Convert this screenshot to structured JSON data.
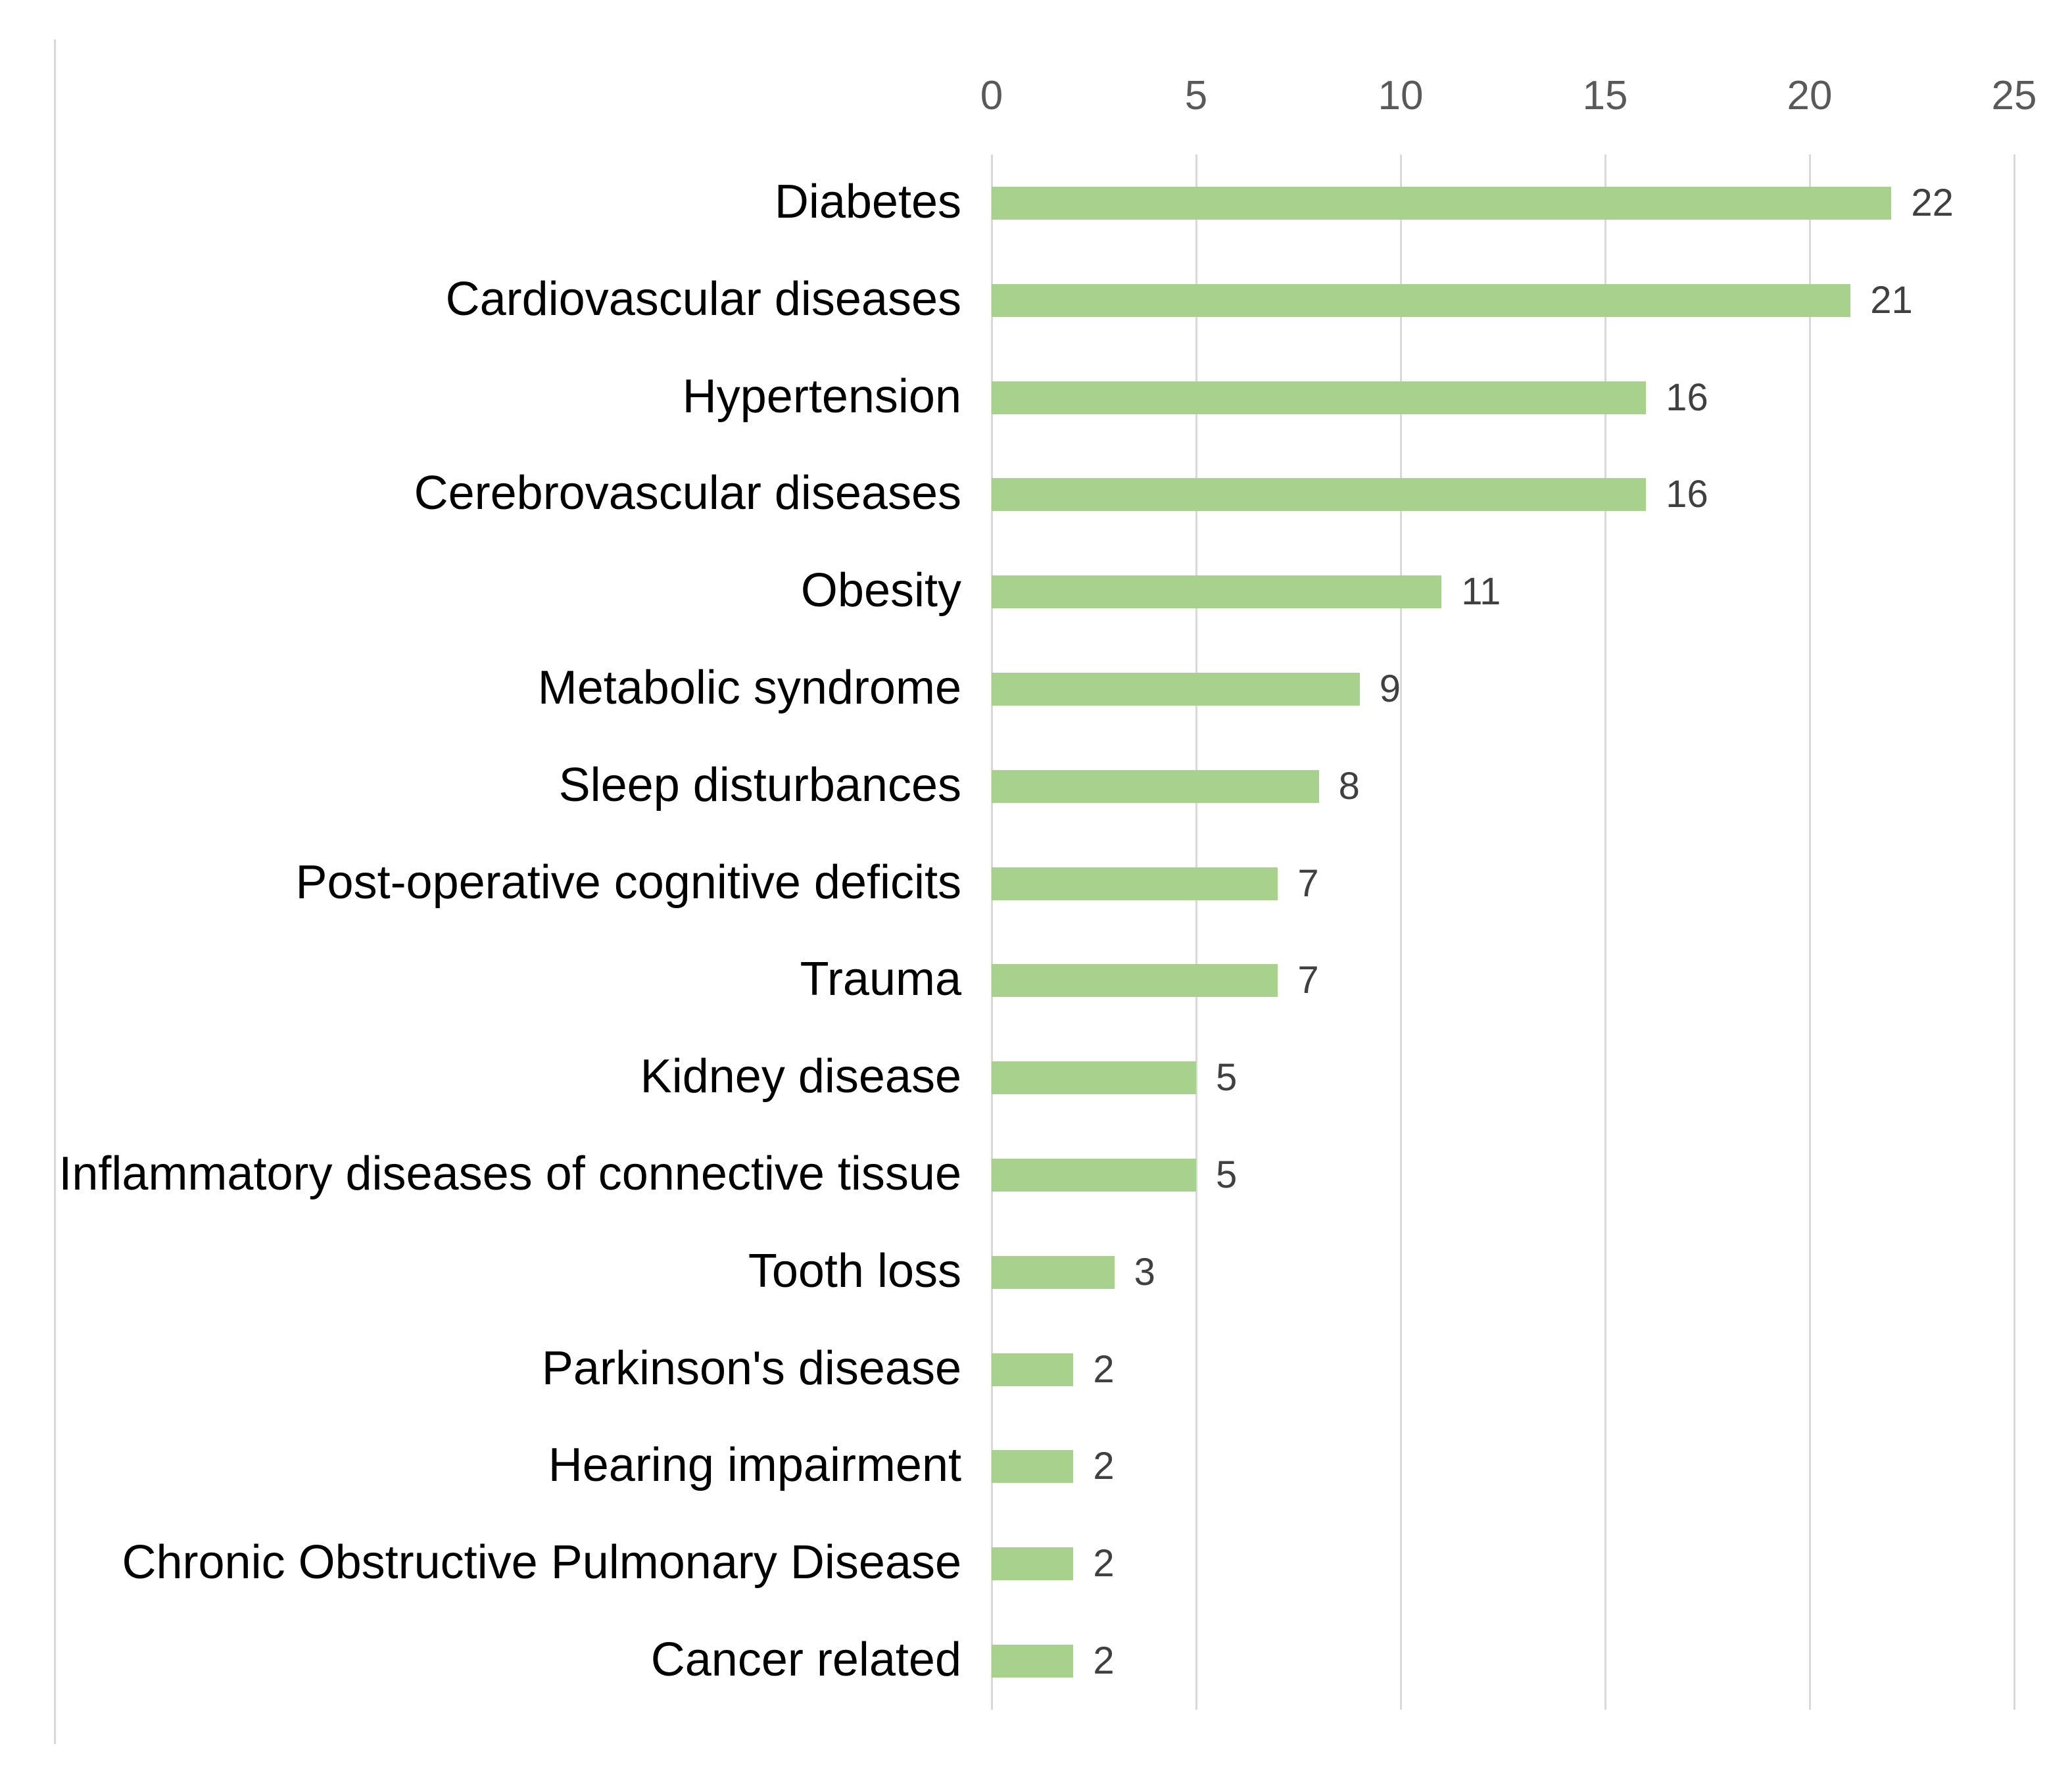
{
  "chart_data": {
    "type": "bar",
    "orientation": "horizontal",
    "title": "",
    "xlabel": "",
    "ylabel": "",
    "categories": [
      "Diabetes",
      "Cardiovascular diseases",
      "Hypertension",
      "Cerebrovascular diseases",
      "Obesity",
      "Metabolic syndrome",
      "Sleep disturbances",
      "Post-operative cognitive deficits",
      "Trauma",
      "Kidney disease",
      "Inflammatory diseases of connective tissue",
      "Tooth loss",
      "Parkinson's disease",
      "Hearing impairment",
      "Chronic Obstructive Pulmonary Disease",
      "Cancer related"
    ],
    "values": [
      22,
      21,
      16,
      16,
      11,
      9,
      8,
      7,
      7,
      5,
      5,
      3,
      2,
      2,
      2,
      2
    ],
    "data_labels": [
      "22",
      "21",
      "16",
      "16",
      "11",
      "9",
      "8",
      "7",
      "7",
      "5",
      "5",
      "3",
      "2",
      "2",
      "2",
      "2"
    ],
    "x_ticks": [
      "0",
      "5",
      "10",
      "15",
      "20",
      "25"
    ],
    "x_tick_values": [
      0,
      5,
      10,
      15,
      20,
      25
    ],
    "xlim": [
      0,
      25
    ],
    "axis_position": "top",
    "grid": "vertical",
    "legend": "none",
    "colors": {
      "bar_fill": "#a9d18e",
      "gridline": "#d9d9d9",
      "tick_label": "#595959",
      "value_label": "#404040",
      "category_label": "#000000",
      "figure_border": "#d9d9d9",
      "background": "#ffffff"
    }
  }
}
